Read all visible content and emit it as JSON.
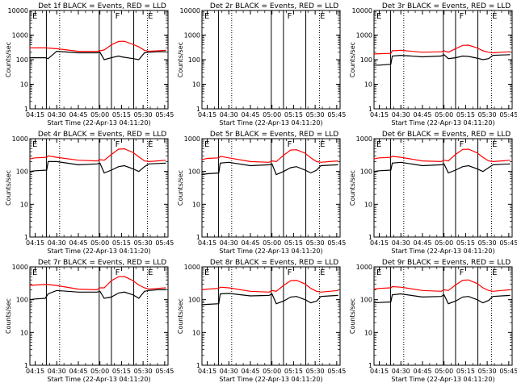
{
  "chart_data": [
    {
      "type": "line",
      "title": "Det 1f BLACK = Events, RED = LLD",
      "ylabel": "Counts/sec",
      "xlabel": "Start Time (22-Apr-13 04:11:20)",
      "yscale": "log",
      "ylim": [
        1,
        10000
      ],
      "ytick_labels": [
        "1",
        "10",
        "100",
        "1000",
        "10000"
      ],
      "xtick_labels": [
        "04:15",
        "04:30",
        "04:45",
        "05:00",
        "05:15",
        "05:30",
        "05:45"
      ],
      "markers": [
        "E",
        "F",
        "E"
      ],
      "series": [
        {
          "color": "#000000",
          "x": [
            "04:11",
            "04:22",
            "04:24",
            "04:30",
            "04:45",
            "04:58",
            "05:00",
            "05:03",
            "05:08",
            "05:13",
            "05:15",
            "05:23",
            "05:27",
            "05:31",
            "05:34",
            "05:40",
            "05:46"
          ],
          "values": [
            120,
            120,
            110,
            220,
            190,
            190,
            200,
            100,
            120,
            140,
            130,
            110,
            100,
            190,
            200,
            210,
            210
          ]
        },
        {
          "color": "#ff0000",
          "x": [
            "04:11",
            "04:22",
            "04:30",
            "04:45",
            "04:58",
            "05:03",
            "05:08",
            "05:13",
            "05:17",
            "05:23",
            "05:27",
            "05:31",
            "05:34",
            "05:40",
            "05:46"
          ],
          "values": [
            300,
            300,
            280,
            220,
            220,
            250,
            400,
            550,
            560,
            420,
            330,
            240,
            220,
            230,
            240
          ]
        }
      ]
    },
    {
      "type": "line",
      "title": "Det 2r BLACK = Events, RED = LLD",
      "ylabel": "Counts/sec",
      "xlabel": "Start Time (22-Apr-13 04:11:20)",
      "yscale": "log",
      "ylim": [
        1,
        10000
      ],
      "ytick_labels": [
        "1",
        "10",
        "100",
        "1000",
        "10000"
      ],
      "xtick_labels": [
        "04:15",
        "04:30",
        "04:45",
        "05:00",
        "05:15",
        "05:30",
        "05:45"
      ],
      "markers": [
        "E",
        "F",
        "E"
      ],
      "series": []
    },
    {
      "type": "line",
      "title": "Det 3r BLACK = Events, RED = LLD",
      "ylabel": "Counts/sec",
      "xlabel": "Start Time (22-Apr-13 04:11:20)",
      "yscale": "log",
      "ylim": [
        1,
        10000
      ],
      "ytick_labels": [
        "1",
        "10",
        "100",
        "1000",
        "10000"
      ],
      "xtick_labels": [
        "04:15",
        "04:30",
        "04:45",
        "05:00",
        "05:15",
        "05:30",
        "05:45"
      ],
      "markers": [
        "E",
        "F",
        "E"
      ],
      "series": [
        {
          "color": "#000000",
          "x": [
            "04:11",
            "04:15",
            "04:23",
            "04:24",
            "04:30",
            "04:45",
            "04:58",
            "05:00",
            "05:03",
            "05:08",
            "05:13",
            "05:17",
            "05:23",
            "05:27",
            "05:31",
            "05:34",
            "05:40",
            "05:46"
          ],
          "values": [
            60,
            60,
            65,
            140,
            150,
            130,
            140,
            160,
            110,
            120,
            140,
            135,
            115,
            100,
            110,
            150,
            155,
            160
          ]
        },
        {
          "color": "#ff0000",
          "x": [
            "04:11",
            "04:15",
            "04:23",
            "04:24",
            "04:30",
            "04:45",
            "04:58",
            "05:00",
            "05:03",
            "05:08",
            "05:13",
            "05:17",
            "05:23",
            "05:27",
            "05:31",
            "05:34",
            "05:40",
            "05:46"
          ],
          "values": [
            170,
            175,
            180,
            230,
            240,
            200,
            210,
            230,
            200,
            280,
            380,
            390,
            300,
            230,
            200,
            190,
            200,
            210
          ]
        }
      ]
    },
    {
      "type": "line",
      "title": "Det 4r BLACK = Events, RED = LLD",
      "ylabel": "Counts/sec",
      "xlabel": "Start Time (22-Apr-13 04:11:20)",
      "yscale": "log",
      "ylim": [
        1,
        1000
      ],
      "ytick_labels": [
        "1",
        "10",
        "100",
        "1000"
      ],
      "xtick_labels": [
        "04:15",
        "04:30",
        "04:45",
        "05:00",
        "05:15",
        "05:30",
        "05:45"
      ],
      "markers": [
        "E",
        "F",
        "E"
      ],
      "series": [
        {
          "color": "#000000",
          "x": [
            "04:11",
            "04:15",
            "04:23",
            "04:24",
            "04:30",
            "04:45",
            "04:58",
            "05:00",
            "05:03",
            "05:08",
            "05:13",
            "05:17",
            "05:23",
            "05:27",
            "05:31",
            "05:34",
            "05:40",
            "05:46"
          ],
          "values": [
            100,
            105,
            110,
            200,
            200,
            160,
            170,
            180,
            90,
            110,
            140,
            150,
            120,
            100,
            140,
            170,
            175,
            180
          ]
        },
        {
          "color": "#ff0000",
          "x": [
            "04:11",
            "04:15",
            "04:23",
            "04:24",
            "04:30",
            "04:45",
            "04:58",
            "05:00",
            "05:03",
            "05:08",
            "05:13",
            "05:17",
            "05:23",
            "05:27",
            "05:31",
            "05:34",
            "05:40",
            "05:46"
          ],
          "values": [
            240,
            260,
            270,
            300,
            270,
            220,
            210,
            230,
            220,
            330,
            480,
            490,
            380,
            280,
            210,
            200,
            210,
            220
          ]
        }
      ]
    },
    {
      "type": "line",
      "title": "Det 5r BLACK = Events, RED = LLD",
      "ylabel": "Counts/sec",
      "xlabel": "Start Time (22-Apr-13 04:11:20)",
      "yscale": "log",
      "ylim": [
        1,
        1000
      ],
      "ytick_labels": [
        "1",
        "10",
        "100",
        "1000"
      ],
      "xtick_labels": [
        "04:15",
        "04:30",
        "04:45",
        "05:00",
        "05:15",
        "05:30",
        "05:45"
      ],
      "markers": [
        "E",
        "F",
        "E"
      ],
      "series": [
        {
          "color": "#000000",
          "x": [
            "04:11",
            "04:15",
            "04:23",
            "04:24",
            "04:30",
            "04:45",
            "04:58",
            "05:00",
            "05:03",
            "05:08",
            "05:13",
            "05:17",
            "05:23",
            "05:27",
            "05:31",
            "05:34",
            "05:40",
            "05:46"
          ],
          "values": [
            80,
            85,
            90,
            180,
            190,
            150,
            160,
            170,
            80,
            100,
            130,
            140,
            110,
            90,
            110,
            150,
            155,
            160
          ]
        },
        {
          "color": "#ff0000",
          "x": [
            "04:11",
            "04:15",
            "04:23",
            "04:24",
            "04:30",
            "04:45",
            "04:58",
            "05:00",
            "05:03",
            "05:08",
            "05:13",
            "05:17",
            "05:23",
            "05:27",
            "05:31",
            "05:34",
            "05:40",
            "05:46"
          ],
          "values": [
            230,
            250,
            260,
            290,
            260,
            200,
            190,
            210,
            200,
            310,
            450,
            460,
            360,
            260,
            200,
            190,
            200,
            210
          ]
        }
      ]
    },
    {
      "type": "line",
      "title": "Det 6r BLACK = Events, RED = LLD",
      "ylabel": "Counts/sec",
      "xlabel": "Start Time (22-Apr-13 04:11:20)",
      "yscale": "log",
      "ylim": [
        1,
        1000
      ],
      "ytick_labels": [
        "1",
        "10",
        "100",
        "1000"
      ],
      "xtick_labels": [
        "04:15",
        "04:30",
        "04:45",
        "05:00",
        "05:15",
        "05:30",
        "05:45"
      ],
      "markers": [
        "E",
        "F",
        "E"
      ],
      "series": [
        {
          "color": "#000000",
          "x": [
            "04:11",
            "04:15",
            "04:23",
            "04:24",
            "04:30",
            "04:45",
            "04:58",
            "05:00",
            "05:03",
            "05:08",
            "05:13",
            "05:17",
            "05:23",
            "05:27",
            "05:31",
            "05:34",
            "05:40",
            "05:46"
          ],
          "values": [
            100,
            105,
            110,
            180,
            190,
            150,
            160,
            170,
            90,
            110,
            140,
            150,
            120,
            100,
            130,
            160,
            165,
            170
          ]
        },
        {
          "color": "#ff0000",
          "x": [
            "04:11",
            "04:15",
            "04:23",
            "04:24",
            "04:30",
            "04:45",
            "04:58",
            "05:00",
            "05:03",
            "05:08",
            "05:13",
            "05:17",
            "05:23",
            "05:27",
            "05:31",
            "05:34",
            "05:40",
            "05:46"
          ],
          "values": [
            240,
            260,
            270,
            290,
            270,
            210,
            200,
            220,
            210,
            330,
            470,
            480,
            370,
            270,
            210,
            200,
            210,
            220
          ]
        }
      ]
    },
    {
      "type": "line",
      "title": "Det 7r BLACK = Events, RED = LLD",
      "ylabel": "Counts/sec",
      "xlabel": "Start Time (22-Apr-13 04:11:20)",
      "yscale": "log",
      "ylim": [
        1,
        1000
      ],
      "ytick_labels": [
        "1",
        "10",
        "100",
        "1000"
      ],
      "xtick_labels": [
        "04:15",
        "04:30",
        "04:45",
        "05:00",
        "05:15",
        "05:30",
        "05:45"
      ],
      "markers": [
        "E",
        "F",
        "E"
      ],
      "series": [
        {
          "color": "#000000",
          "x": [
            "04:11",
            "04:15",
            "04:22",
            "04:24",
            "04:30",
            "04:45",
            "04:58",
            "05:00",
            "05:03",
            "05:08",
            "05:13",
            "05:17",
            "05:23",
            "05:27",
            "05:31",
            "05:34",
            "05:40",
            "05:46"
          ],
          "values": [
            100,
            105,
            110,
            150,
            190,
            170,
            170,
            180,
            110,
            120,
            160,
            170,
            140,
            110,
            180,
            190,
            200,
            200
          ]
        },
        {
          "color": "#ff0000",
          "x": [
            "04:11",
            "04:15",
            "04:22",
            "04:24",
            "04:30",
            "04:45",
            "04:58",
            "05:00",
            "05:03",
            "05:08",
            "05:13",
            "05:17",
            "05:23",
            "05:27",
            "05:31",
            "05:34",
            "05:40",
            "05:46"
          ],
          "values": [
            270,
            280,
            290,
            290,
            270,
            210,
            200,
            230,
            230,
            380,
            500,
            510,
            380,
            280,
            230,
            210,
            220,
            230
          ]
        }
      ]
    },
    {
      "type": "line",
      "title": "Det 8r BLACK = Events, RED = LLD",
      "ylabel": "Counts/sec",
      "xlabel": "Start Time (22-Apr-13 04:11:20)",
      "yscale": "log",
      "ylim": [
        1,
        1000
      ],
      "ytick_labels": [
        "1",
        "10",
        "100",
        "1000"
      ],
      "xtick_labels": [
        "04:15",
        "04:30",
        "04:45",
        "05:00",
        "05:15",
        "05:30",
        "05:45"
      ],
      "markers": [
        "E",
        "F",
        "E"
      ],
      "series": [
        {
          "color": "#000000",
          "x": [
            "04:11",
            "04:15",
            "04:23",
            "04:24",
            "04:30",
            "04:45",
            "04:58",
            "05:00",
            "05:03",
            "05:08",
            "05:13",
            "05:17",
            "05:23",
            "05:27",
            "05:31",
            "05:34",
            "05:40",
            "05:46"
          ],
          "values": [
            70,
            72,
            75,
            150,
            155,
            130,
            135,
            150,
            75,
            90,
            120,
            125,
            100,
            80,
            90,
            125,
            130,
            135
          ]
        },
        {
          "color": "#ff0000",
          "x": [
            "04:11",
            "04:15",
            "04:23",
            "04:24",
            "04:30",
            "04:45",
            "04:58",
            "05:00",
            "05:03",
            "05:08",
            "05:13",
            "05:17",
            "05:23",
            "05:27",
            "05:31",
            "05:34",
            "05:40",
            "05:46"
          ],
          "values": [
            200,
            210,
            220,
            240,
            230,
            180,
            170,
            190,
            180,
            270,
            380,
            390,
            300,
            220,
            180,
            170,
            180,
            190
          ]
        }
      ]
    },
    {
      "type": "line",
      "title": "Det 9r BLACK = Events, RED = LLD",
      "ylabel": "Counts/sec",
      "xlabel": "Start Time (22-Apr-13 04:11:20)",
      "yscale": "log",
      "ylim": [
        1,
        1000
      ],
      "ytick_labels": [
        "1",
        "10",
        "100",
        "1000"
      ],
      "xtick_labels": [
        "04:15",
        "04:30",
        "04:45",
        "05:00",
        "05:15",
        "05:30",
        "05:45"
      ],
      "markers": [
        "E",
        "F",
        "E"
      ],
      "series": [
        {
          "color": "#000000",
          "x": [
            "04:11",
            "04:15",
            "04:23",
            "04:24",
            "04:30",
            "04:45",
            "04:58",
            "05:00",
            "05:03",
            "05:08",
            "05:13",
            "05:17",
            "05:23",
            "05:27",
            "05:31",
            "05:34",
            "05:40",
            "05:46"
          ],
          "values": [
            80,
            82,
            85,
            140,
            150,
            120,
            125,
            140,
            75,
            90,
            120,
            125,
            100,
            80,
            95,
            125,
            130,
            135
          ]
        },
        {
          "color": "#ff0000",
          "x": [
            "04:11",
            "04:15",
            "04:23",
            "04:24",
            "04:30",
            "04:45",
            "04:58",
            "05:00",
            "05:03",
            "05:08",
            "05:13",
            "05:17",
            "05:23",
            "05:27",
            "05:31",
            "05:34",
            "05:40",
            "05:46"
          ],
          "values": [
            210,
            220,
            230,
            250,
            240,
            190,
            180,
            200,
            190,
            280,
            390,
            400,
            310,
            230,
            190,
            180,
            190,
            200
          ]
        }
      ]
    }
  ]
}
